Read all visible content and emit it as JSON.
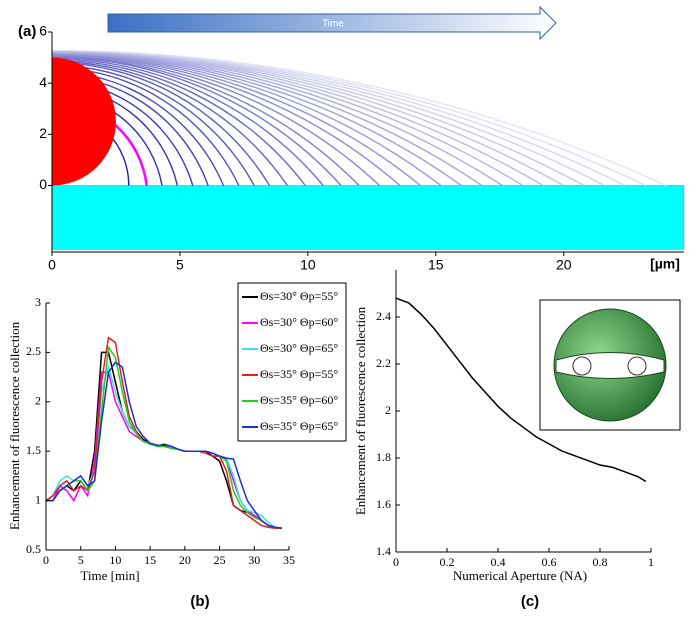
{
  "chart_data": [
    {
      "type": "profile",
      "panel_label": "(a)",
      "annotation": "Time",
      "xlabel": "[µm]",
      "xlim": [
        0,
        24.7
      ],
      "ylim": [
        -2.6,
        6
      ],
      "xticks": [
        0,
        5,
        10,
        15,
        20
      ],
      "yticks": [
        0,
        2,
        4,
        6
      ],
      "droplet": {
        "color": "#ff0000",
        "radius": 2.5
      },
      "substrate": {
        "color": "#00ffff",
        "depth": 2.5
      },
      "colors": [
        "#2020b0",
        "#e4e4f6"
      ],
      "highlight_index": 1,
      "highlight_color": "#ff00ff",
      "profiles": {
        "radii": [
          3.0,
          3.7,
          4.3,
          4.9,
          5.5,
          6.1,
          6.7,
          7.3,
          7.9,
          8.5,
          9.2,
          9.9,
          10.6,
          11.3,
          12.0,
          12.8,
          13.6,
          14.4,
          15.2,
          16.0,
          16.8,
          17.6,
          18.4,
          19.2,
          20.0,
          20.8,
          21.6,
          22.4,
          23.2,
          24.0
        ],
        "heights": [
          3.0,
          3.3,
          3.6,
          3.9,
          4.1,
          4.3,
          4.45,
          4.6,
          4.7,
          4.8,
          4.85,
          4.9,
          4.95,
          5.0,
          5.02,
          5.05,
          5.08,
          5.1,
          5.12,
          5.14,
          5.16,
          5.18,
          5.2,
          5.21,
          5.22,
          5.23,
          5.24,
          5.25,
          5.26,
          5.27
        ]
      }
    },
    {
      "type": "line",
      "panel_label": "(b)",
      "xlabel": "Time [min]",
      "ylabel": "Enhancement of fluorescence collection",
      "xlim": [
        0,
        35
      ],
      "ylim": [
        0.5,
        3
      ],
      "xticks": [
        0,
        5,
        10,
        15,
        20,
        25,
        30,
        35
      ],
      "yticks": [
        0.5,
        1,
        1.5,
        2,
        2.5,
        3
      ],
      "x": [
        0,
        1,
        2,
        3,
        4,
        5,
        6,
        7,
        8,
        9,
        10,
        11,
        12,
        13,
        14,
        15,
        16,
        17,
        18,
        19,
        20,
        21,
        22,
        23,
        24,
        25,
        26,
        27,
        28,
        29,
        30,
        31,
        32,
        33,
        34
      ],
      "series": [
        {
          "name": "Θs=30° Θp=55°",
          "color": "#000000",
          "values": [
            1,
            1.0,
            1.1,
            1.15,
            1.1,
            1.2,
            1.1,
            1.5,
            2.5,
            2.5,
            2.2,
            1.9,
            1.75,
            1.7,
            1.62,
            1.58,
            1.55,
            1.57,
            1.55,
            1.52,
            1.5,
            1.5,
            1.5,
            1.5,
            1.45,
            1.4,
            1.2,
            0.95,
            0.9,
            0.88,
            0.85,
            0.8,
            0.75,
            0.73,
            0.72
          ]
        },
        {
          "name": "Θs=30° Θp=60°",
          "color": "#ff00ff",
          "values": [
            1,
            1.0,
            1.15,
            1.1,
            1.0,
            1.15,
            1.05,
            1.4,
            2.3,
            2.3,
            2.0,
            1.85,
            1.7,
            1.65,
            1.6,
            1.58,
            1.55,
            1.56,
            1.55,
            1.52,
            1.5,
            1.5,
            1.5,
            1.5,
            1.48,
            1.45,
            1.42,
            1.2,
            1.0,
            0.9,
            0.85,
            0.8,
            0.75,
            0.73,
            0.72
          ]
        },
        {
          "name": "Θs=30° Θp=65°",
          "color": "#40e0e0",
          "values": [
            1,
            1.05,
            1.2,
            1.25,
            1.2,
            1.25,
            1.15,
            1.3,
            2.1,
            2.35,
            2.1,
            1.9,
            1.75,
            1.68,
            1.6,
            1.58,
            1.56,
            1.56,
            1.55,
            1.52,
            1.5,
            1.5,
            1.5,
            1.5,
            1.48,
            1.45,
            1.43,
            1.25,
            1.0,
            0.9,
            0.88,
            0.85,
            0.78,
            0.73,
            0.72
          ]
        },
        {
          "name": "Θs=35° Θp=55°",
          "color": "#e02020",
          "values": [
            1,
            1.05,
            1.15,
            1.2,
            1.1,
            1.15,
            1.1,
            1.3,
            2.2,
            2.65,
            2.6,
            2.2,
            1.85,
            1.7,
            1.6,
            1.58,
            1.56,
            1.55,
            1.53,
            1.52,
            1.5,
            1.5,
            1.5,
            1.48,
            1.45,
            1.45,
            1.3,
            0.95,
            0.9,
            0.85,
            0.8,
            0.75,
            0.73,
            0.72,
            0.72
          ]
        },
        {
          "name": "Θs=35° Θp=60°",
          "color": "#20d020",
          "values": [
            1,
            1.0,
            1.1,
            1.15,
            1.2,
            1.2,
            1.1,
            1.2,
            1.9,
            2.55,
            2.45,
            2.1,
            1.8,
            1.68,
            1.6,
            1.57,
            1.55,
            1.55,
            1.53,
            1.52,
            1.5,
            1.5,
            1.5,
            1.5,
            1.48,
            1.45,
            1.4,
            1.1,
            0.95,
            0.88,
            0.83,
            0.8,
            0.75,
            0.73,
            0.72
          ]
        },
        {
          "name": "Θs=35° Θp=65°",
          "color": "#2030d0",
          "values": [
            1,
            1.0,
            1.1,
            1.15,
            1.2,
            1.25,
            1.15,
            1.2,
            1.8,
            2.3,
            2.4,
            2.35,
            2.0,
            1.75,
            1.65,
            1.58,
            1.56,
            1.56,
            1.55,
            1.52,
            1.5,
            1.5,
            1.5,
            1.5,
            1.48,
            1.45,
            1.43,
            1.42,
            1.2,
            1.0,
            0.9,
            0.8,
            0.75,
            0.73,
            0.72
          ]
        }
      ]
    },
    {
      "type": "line",
      "panel_label": "(c)",
      "xlabel": "Numerical Aperture (NA)",
      "ylabel": "Enhancement of fluorescence collection",
      "xlim": [
        0,
        1
      ],
      "ylim": [
        1.4,
        2.6
      ],
      "xticks": [
        0,
        0.2,
        0.4,
        0.6,
        0.8,
        1
      ],
      "yticks": [
        1.4,
        1.6,
        1.8,
        2,
        2.2,
        2.4
      ],
      "x": [
        0,
        0.05,
        0.1,
        0.15,
        0.2,
        0.25,
        0.3,
        0.35,
        0.4,
        0.45,
        0.5,
        0.55,
        0.6,
        0.65,
        0.7,
        0.75,
        0.8,
        0.85,
        0.9,
        0.95,
        0.98
      ],
      "series": [
        {
          "color": "#000000",
          "values": [
            2.48,
            2.46,
            2.41,
            2.35,
            2.28,
            2.21,
            2.14,
            2.08,
            2.02,
            1.97,
            1.93,
            1.89,
            1.86,
            1.83,
            1.81,
            1.79,
            1.77,
            1.76,
            1.74,
            1.72,
            1.7
          ]
        }
      ]
    }
  ]
}
